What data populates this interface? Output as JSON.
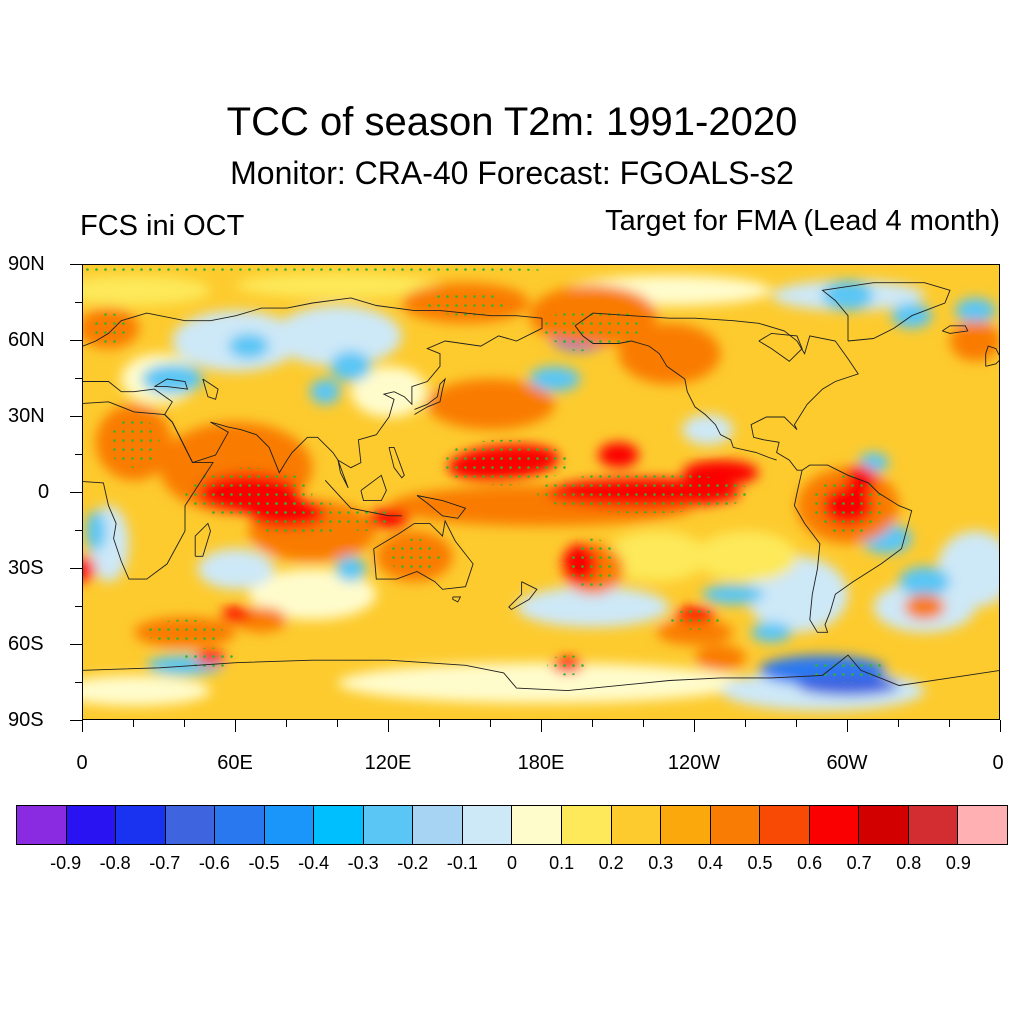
{
  "title": "TCC of season T2m: 1991-2020",
  "subtitle": "Monitor: CRA-40   Forecast: FGOALS-s2",
  "left_label": "FCS ini OCT",
  "right_label": "Target for FMA (Lead 4 month)",
  "y_axis_labels": [
    "90N",
    "60N",
    "30N",
    "0",
    "30S",
    "60S",
    "90S"
  ],
  "x_axis_labels": [
    "0",
    "60E",
    "120E",
    "180E",
    "120W",
    "60W",
    "0"
  ],
  "colorbar": {
    "colors": [
      "#8a2be2",
      "#2a13f2",
      "#1a33f0",
      "#3f64e0",
      "#2a78f0",
      "#1a96fa",
      "#00bfff",
      "#5ac6f5",
      "#a7d4f2",
      "#cde8f7",
      "#fffccc",
      "#fde95a",
      "#fdcb2e",
      "#fba80c",
      "#f97c05",
      "#f84a04",
      "#fb0000",
      "#d30000",
      "#d42d31",
      "#ffb0b3"
    ],
    "labels": [
      "-0.9",
      "-0.8",
      "-0.7",
      "-0.6",
      "-0.5",
      "-0.4",
      "-0.3",
      "-0.2",
      "-0.1",
      "0",
      "0.1",
      "0.2",
      "0.3",
      "0.4",
      "0.5",
      "0.6",
      "0.7",
      "0.8",
      "0.9"
    ]
  },
  "field_colors": {
    "background": "#fdcb2e",
    "strong_positive": "#fb0000",
    "positive": "#f97c05",
    "weak_positive": "#fde95a",
    "near_zero": "#fffccc",
    "weak_negative": "#cde8f7",
    "negative": "#5ac6f5",
    "strong_negative": "#2a78f0",
    "very_strong_negative": "#3f64e0",
    "stipple": "#2db52d",
    "coastline": "#202020"
  }
}
